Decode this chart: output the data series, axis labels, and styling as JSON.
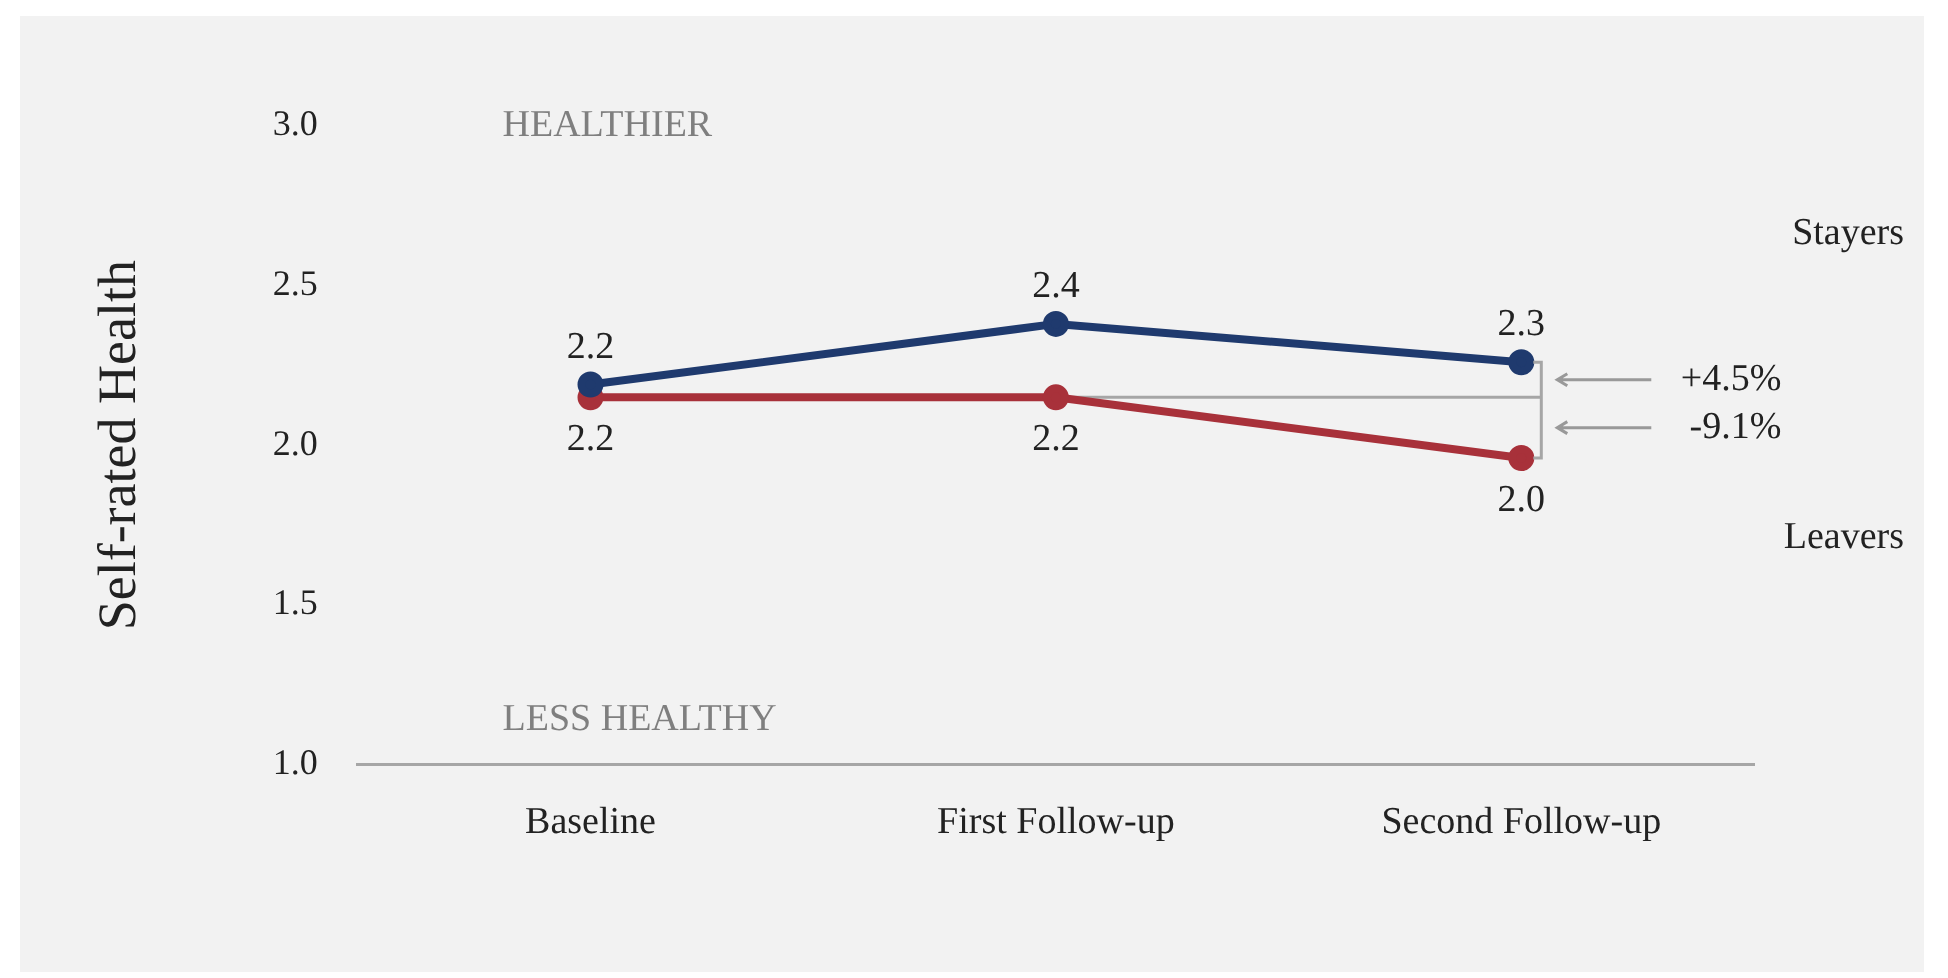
{
  "chart_data": {
    "type": "line",
    "ylabel": "Self-rated Health",
    "categories": [
      "Baseline",
      "First Follow-up",
      "Second Follow-up"
    ],
    "series": [
      {
        "name": "Stayers",
        "color": "#1f3a6e",
        "values": [
          2.19,
          2.38,
          2.26
        ],
        "value_labels": [
          "2.2",
          "2.4",
          "2.3"
        ]
      },
      {
        "name": "Leavers",
        "color": "#a8313a",
        "values": [
          2.15,
          2.15,
          1.96
        ],
        "value_labels": [
          "2.2",
          "2.2",
          "2.0"
        ]
      }
    ],
    "ylim": [
      1,
      3
    ],
    "yticks": [
      {
        "value": 1,
        "label": "1.0"
      },
      {
        "value": 1.5,
        "label": "1.5"
      },
      {
        "value": 2,
        "label": "2.0"
      },
      {
        "value": 2.5,
        "label": "2.5"
      },
      {
        "value": 3,
        "label": "3.0"
      }
    ],
    "ref_lines": [
      {
        "axis": "y",
        "value": 2.15,
        "color": "#a6a6a6"
      }
    ],
    "annotations": [
      "HEALTHIER",
      "LESS HEALTHY",
      "+4.5%",
      "-9.1%"
    ],
    "grid": false,
    "legend": false,
    "marker": "circle",
    "line_style": "solid"
  }
}
